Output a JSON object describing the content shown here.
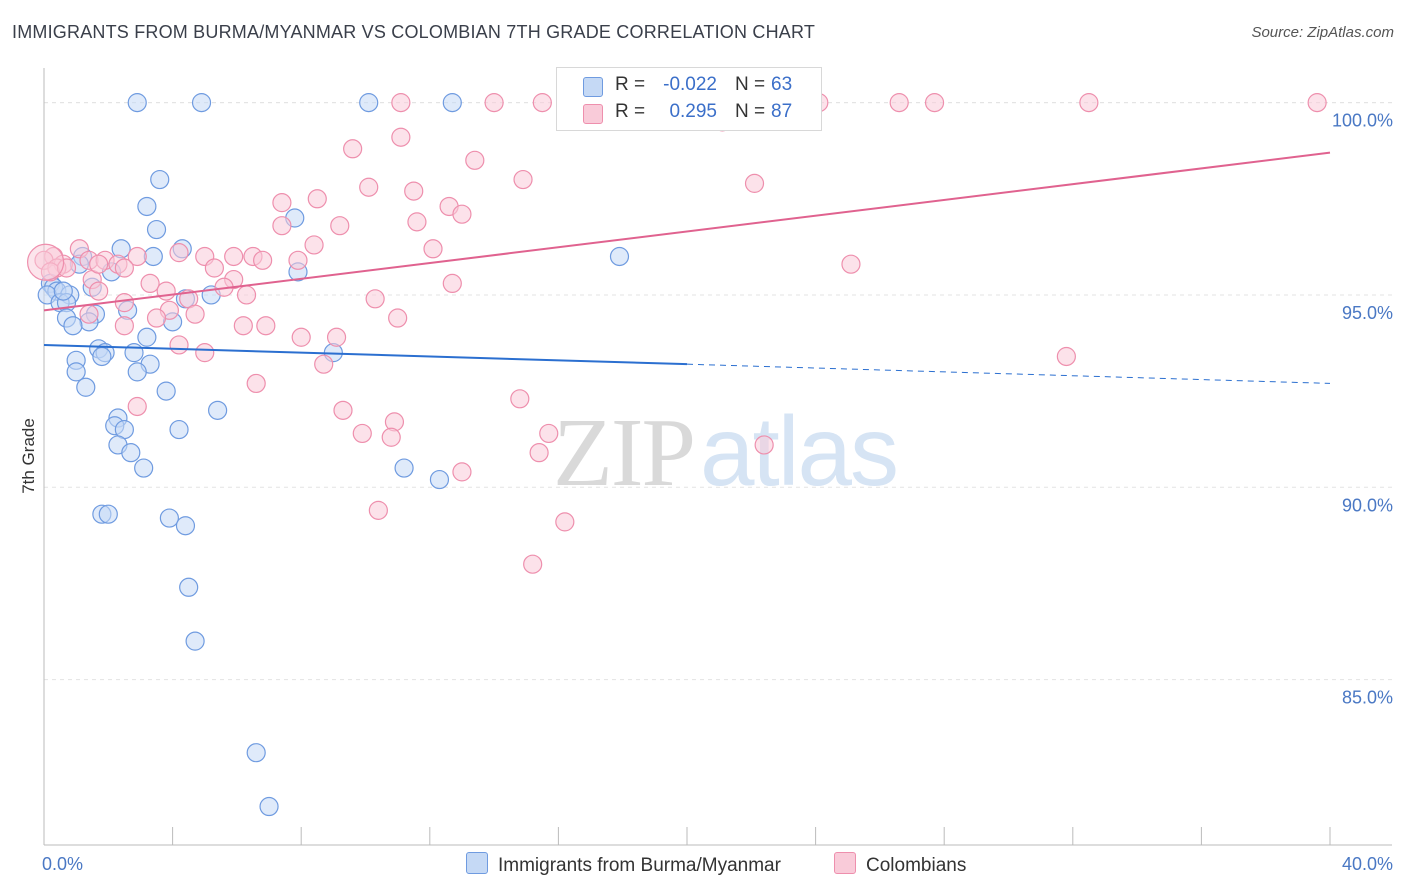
{
  "title": "IMMIGRANTS FROM BURMA/MYANMAR VS COLOMBIAN 7TH GRADE CORRELATION CHART",
  "source": "Source: ZipAtlas.com",
  "watermark": {
    "zip": "ZIP",
    "atlas": "atlas"
  },
  "legend": {
    "rows": [
      {
        "r_label": "R =",
        "r_value": "-0.022",
        "n_label": "N =",
        "n_value": "63"
      },
      {
        "r_label": "R =",
        "r_value": "0.295",
        "n_label": "N =",
        "n_value": "87"
      }
    ]
  },
  "colors": {
    "blue_fill": "#c5d9f5",
    "blue_stroke": "#6f9be0",
    "blue_line": "#2b6fd0",
    "pink_fill": "#f9cbd9",
    "pink_stroke": "#ee8fad",
    "pink_line": "#e0628f",
    "grid": "#e3e3e3",
    "tick_text": "#4a78c4"
  },
  "chart_data": {
    "type": "scatter",
    "title": "IMMIGRANTS FROM BURMA/MYANMAR VS COLOMBIAN 7TH GRADE CORRELATION CHART",
    "xlabel": "",
    "ylabel": "7th Grade",
    "xlim": [
      0,
      40
    ],
    "ylim": [
      80.7,
      100.9
    ],
    "x_tick_labels": [
      "0.0%",
      "40.0%"
    ],
    "y_ticks": [
      100,
      95,
      90,
      85
    ],
    "y_tick_labels": [
      "100.0%",
      "95.0%",
      "90.0%",
      "85.0%"
    ],
    "grid": "horizontal dashed",
    "legend_placement": "top-center",
    "series": [
      {
        "name": "Immigrants from Burma/Myanmar",
        "color": "blue",
        "trend": {
          "x": [
            0,
            20,
            40
          ],
          "y": [
            93.7,
            93.2,
            92.7
          ],
          "solid_until_x": 20
        },
        "points": [
          [
            2.9,
            100
          ],
          [
            4.9,
            100
          ],
          [
            10.1,
            100
          ],
          [
            12.7,
            100
          ],
          [
            3.6,
            98
          ],
          [
            3.2,
            97.3
          ],
          [
            7.8,
            97
          ],
          [
            3.5,
            96.7
          ],
          [
            2.4,
            96.2
          ],
          [
            4.3,
            96.2
          ],
          [
            1.2,
            96
          ],
          [
            3.4,
            96
          ],
          [
            17.9,
            96
          ],
          [
            1.1,
            95.8
          ],
          [
            2.1,
            95.6
          ],
          [
            7.9,
            95.6
          ],
          [
            0.2,
            95.3
          ],
          [
            0.3,
            95.2
          ],
          [
            0.4,
            95.1
          ],
          [
            1.5,
            95.2
          ],
          [
            0.1,
            95.0
          ],
          [
            0.8,
            95.0
          ],
          [
            4.4,
            94.9
          ],
          [
            5.2,
            95.0
          ],
          [
            0.5,
            94.8
          ],
          [
            0.7,
            94.8
          ],
          [
            2.6,
            94.6
          ],
          [
            1.6,
            94.5
          ],
          [
            0.7,
            94.4
          ],
          [
            1.4,
            94.3
          ],
          [
            4.0,
            94.3
          ],
          [
            0.9,
            94.2
          ],
          [
            3.2,
            93.9
          ],
          [
            1.7,
            93.6
          ],
          [
            9.0,
            93.5
          ],
          [
            1.9,
            93.5
          ],
          [
            2.8,
            93.5
          ],
          [
            1.0,
            93.3
          ],
          [
            1.8,
            93.4
          ],
          [
            3.3,
            93.2
          ],
          [
            2.9,
            93.0
          ],
          [
            1.0,
            93.0
          ],
          [
            1.3,
            92.6
          ],
          [
            3.8,
            92.5
          ],
          [
            5.4,
            92.0
          ],
          [
            2.3,
            91.8
          ],
          [
            2.2,
            91.6
          ],
          [
            4.2,
            91.5
          ],
          [
            2.5,
            91.5
          ],
          [
            2.3,
            91.1
          ],
          [
            2.7,
            90.9
          ],
          [
            3.1,
            90.5
          ],
          [
            11.2,
            90.5
          ],
          [
            12.3,
            90.2
          ],
          [
            1.8,
            89.3
          ],
          [
            2.0,
            89.3
          ],
          [
            3.9,
            89.2
          ],
          [
            4.4,
            89.0
          ],
          [
            4.5,
            87.4
          ],
          [
            4.7,
            86.0
          ],
          [
            6.6,
            83.1
          ],
          [
            7.0,
            81.7
          ],
          [
            0.6,
            95.1
          ]
        ]
      },
      {
        "name": "Colombians",
        "color": "pink",
        "trend": {
          "x": [
            0,
            40
          ],
          "y": [
            94.6,
            98.7
          ],
          "solid_until_x": 40
        },
        "points": [
          [
            11.1,
            100
          ],
          [
            14.0,
            100
          ],
          [
            15.5,
            100
          ],
          [
            17.0,
            100
          ],
          [
            19.4,
            100
          ],
          [
            24.1,
            100
          ],
          [
            26.6,
            100
          ],
          [
            27.7,
            100
          ],
          [
            32.5,
            100
          ],
          [
            39.6,
            100
          ],
          [
            21.1,
            99.5
          ],
          [
            11.1,
            99.1
          ],
          [
            9.6,
            98.8
          ],
          [
            13.4,
            98.5
          ],
          [
            14.9,
            98.0
          ],
          [
            22.1,
            97.9
          ],
          [
            10.1,
            97.8
          ],
          [
            11.5,
            97.7
          ],
          [
            8.5,
            97.5
          ],
          [
            7.4,
            97.4
          ],
          [
            12.6,
            97.3
          ],
          [
            13.0,
            97.1
          ],
          [
            11.6,
            96.9
          ],
          [
            9.2,
            96.8
          ],
          [
            7.4,
            96.8
          ],
          [
            8.4,
            96.3
          ],
          [
            1.1,
            96.2
          ],
          [
            12.1,
            96.2
          ],
          [
            5.0,
            96.0
          ],
          [
            5.9,
            96.0
          ],
          [
            6.5,
            96.0
          ],
          [
            2.9,
            96.0
          ],
          [
            0.3,
            96.0
          ],
          [
            0.0,
            95.9
          ],
          [
            1.4,
            95.9
          ],
          [
            1.9,
            95.9
          ],
          [
            4.2,
            96.1
          ],
          [
            7.9,
            95.9
          ],
          [
            6.8,
            95.9
          ],
          [
            2.3,
            95.8
          ],
          [
            25.1,
            95.8
          ],
          [
            0.6,
            95.8
          ],
          [
            0.4,
            95.7
          ],
          [
            0.2,
            95.6
          ],
          [
            5.3,
            95.7
          ],
          [
            2.5,
            95.7
          ],
          [
            0.7,
            95.7
          ],
          [
            1.5,
            95.4
          ],
          [
            1.7,
            95.8
          ],
          [
            5.9,
            95.4
          ],
          [
            12.7,
            95.3
          ],
          [
            3.3,
            95.3
          ],
          [
            5.6,
            95.2
          ],
          [
            1.7,
            95.1
          ],
          [
            3.8,
            95.1
          ],
          [
            6.3,
            95.0
          ],
          [
            10.3,
            94.9
          ],
          [
            4.5,
            94.9
          ],
          [
            2.5,
            94.8
          ],
          [
            3.9,
            94.6
          ],
          [
            4.7,
            94.5
          ],
          [
            1.4,
            94.5
          ],
          [
            3.5,
            94.4
          ],
          [
            11.0,
            94.4
          ],
          [
            6.2,
            94.2
          ],
          [
            6.9,
            94.2
          ],
          [
            2.5,
            94.2
          ],
          [
            9.1,
            93.9
          ],
          [
            8.0,
            93.9
          ],
          [
            4.2,
            93.7
          ],
          [
            5.0,
            93.5
          ],
          [
            31.8,
            93.4
          ],
          [
            8.7,
            93.2
          ],
          [
            6.6,
            92.7
          ],
          [
            14.8,
            92.3
          ],
          [
            2.9,
            92.1
          ],
          [
            9.3,
            92.0
          ],
          [
            10.9,
            91.7
          ],
          [
            9.9,
            91.4
          ],
          [
            10.8,
            91.3
          ],
          [
            15.7,
            91.4
          ],
          [
            22.4,
            91.1
          ],
          [
            15.4,
            90.9
          ],
          [
            13.0,
            90.4
          ],
          [
            10.4,
            89.4
          ],
          [
            16.2,
            89.1
          ],
          [
            15.2,
            88.0
          ]
        ]
      }
    ]
  },
  "bottom_legend": [
    "Immigrants from Burma/Myanmar",
    "Colombians"
  ]
}
